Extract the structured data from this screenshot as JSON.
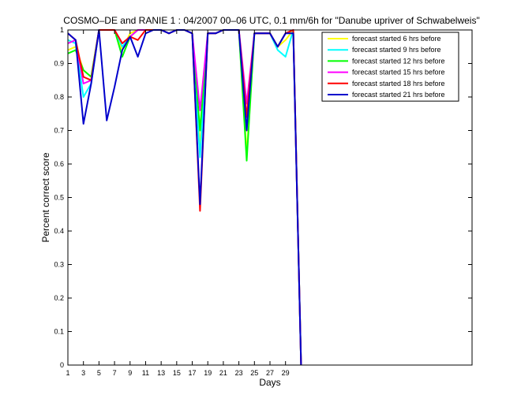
{
  "chart_data": {
    "type": "line",
    "title": "COSMO–DE and RANIE 1 : 04/2007 00–06 UTC, 0.1 mm/6h for \"Danube upriver of Schwabelweis\"",
    "xlabel": "Days",
    "ylabel": "Percent correct score",
    "xlim": [
      1,
      53
    ],
    "ylim": [
      0,
      1
    ],
    "xticks": [
      1,
      3,
      5,
      7,
      9,
      11,
      13,
      15,
      17,
      19,
      21,
      23,
      25,
      27,
      29
    ],
    "yticks": [
      0,
      0.1,
      0.2,
      0.3,
      0.4,
      0.5,
      0.6,
      0.7,
      0.8,
      0.9,
      1
    ],
    "ytick_labels": [
      "0",
      "0.1",
      "0.2",
      "0.3",
      "0.4",
      "0.5",
      "0.6",
      "0.7",
      "0.8",
      "0.9",
      "1"
    ],
    "grid": false,
    "legend_position": "top-right",
    "x": [
      1,
      2,
      3,
      4,
      5,
      6,
      7,
      8,
      9,
      10,
      11,
      12,
      13,
      14,
      15,
      16,
      17,
      18,
      19,
      20,
      21,
      22,
      23,
      24,
      25,
      26,
      27,
      28,
      29,
      30,
      31
    ],
    "series": [
      {
        "name": "forecast started 6 hrs before",
        "color": "#ffff00",
        "values": [
          0.94,
          0.95,
          0.88,
          0.86,
          1.0,
          1.0,
          1.0,
          0.94,
          0.99,
          1.0,
          1.0,
          1.0,
          1.0,
          0.99,
          1.0,
          1.0,
          0.99,
          0.65,
          0.99,
          0.99,
          1.0,
          1.0,
          1.0,
          0.63,
          0.99,
          0.99,
          0.99,
          0.95,
          0.97,
          1.0,
          0.0
        ]
      },
      {
        "name": "forecast started 9 hrs before",
        "color": "#00ffff",
        "values": [
          0.97,
          0.96,
          0.8,
          0.84,
          1.0,
          1.0,
          1.0,
          0.95,
          0.98,
          1.0,
          1.0,
          1.0,
          1.0,
          0.99,
          1.0,
          1.0,
          0.99,
          0.62,
          0.99,
          0.99,
          1.0,
          1.0,
          1.0,
          0.7,
          0.99,
          0.99,
          0.99,
          0.94,
          0.92,
          1.0,
          0.0
        ]
      },
      {
        "name": "forecast started 12 hrs before",
        "color": "#00ff00",
        "values": [
          0.93,
          0.94,
          0.88,
          0.86,
          1.0,
          1.0,
          1.0,
          0.92,
          0.98,
          1.0,
          1.0,
          1.0,
          1.0,
          0.99,
          1.0,
          1.0,
          0.99,
          0.7,
          0.99,
          0.99,
          1.0,
          1.0,
          1.0,
          0.61,
          0.99,
          0.99,
          0.99,
          0.95,
          0.99,
          1.0,
          0.0
        ]
      },
      {
        "name": "forecast started 15 hrs before",
        "color": "#ff00ff",
        "values": [
          0.96,
          0.97,
          0.84,
          0.85,
          1.0,
          1.0,
          1.0,
          0.96,
          0.98,
          1.0,
          1.0,
          1.0,
          1.0,
          0.99,
          1.0,
          1.0,
          0.99,
          0.76,
          0.99,
          0.99,
          1.0,
          1.0,
          1.0,
          0.78,
          0.99,
          0.99,
          0.99,
          0.95,
          0.99,
          1.0,
          0.0
        ]
      },
      {
        "name": "forecast started 18 hrs before",
        "color": "#ff0000",
        "values": [
          0.99,
          0.97,
          0.86,
          0.85,
          1.0,
          1.0,
          1.0,
          0.96,
          0.98,
          0.97,
          1.0,
          1.0,
          1.0,
          0.99,
          1.0,
          1.0,
          0.99,
          0.46,
          0.99,
          0.99,
          1.0,
          1.0,
          1.0,
          0.74,
          0.99,
          0.99,
          0.99,
          0.95,
          0.99,
          1.0,
          0.0
        ]
      },
      {
        "name": "forecast started 21 hrs before",
        "color": "#0000cc",
        "values": [
          0.99,
          0.97,
          0.72,
          0.84,
          1.0,
          0.73,
          0.83,
          0.94,
          0.98,
          0.92,
          0.99,
          1.0,
          1.0,
          0.99,
          1.0,
          1.0,
          0.99,
          0.48,
          0.99,
          0.99,
          1.0,
          1.0,
          1.0,
          0.7,
          0.99,
          0.99,
          0.99,
          0.95,
          0.99,
          0.99,
          0.0
        ]
      }
    ]
  }
}
